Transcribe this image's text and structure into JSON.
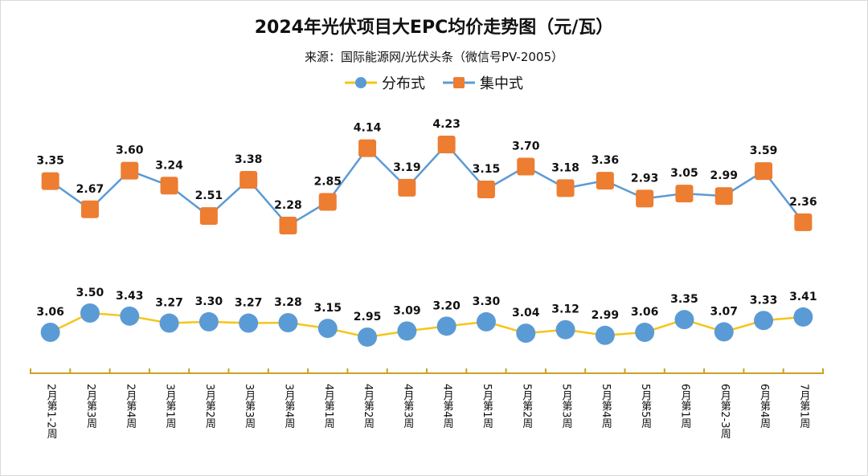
{
  "chart_data": {
    "type": "line",
    "title": "2024年光伏项目大EPC均价走势图（元/瓦）",
    "subtitle": "来源：国际能源网/光伏头条（微信号PV-2005）",
    "categories": [
      "2月第1-2周",
      "2月第3周",
      "2月第4周",
      "3月第1周",
      "3月第2周",
      "3月第3周",
      "3月第4周",
      "4月第1周",
      "4月第2周",
      "4月第3周",
      "4月第4周",
      "5月第1周",
      "5月第2周",
      "5月第3周",
      "5月第4周",
      "5月第5周",
      "6月第1周",
      "6月第2-3周",
      "6月第4周",
      "7月第1周"
    ],
    "series": [
      {
        "name": "分布式",
        "line_color": "#f5c518",
        "marker": "circle",
        "marker_color": "#5b9bd5",
        "values": [
          3.06,
          3.5,
          3.43,
          3.27,
          3.3,
          3.27,
          3.28,
          3.15,
          2.95,
          3.09,
          3.2,
          3.3,
          3.04,
          3.12,
          2.99,
          3.06,
          3.35,
          3.07,
          3.33,
          3.41
        ]
      },
      {
        "name": "集中式",
        "line_color": "#5b9bd5",
        "marker": "square",
        "marker_color": "#ed7d31",
        "values": [
          3.35,
          2.67,
          3.6,
          3.24,
          2.51,
          3.38,
          2.28,
          2.85,
          4.14,
          3.19,
          4.23,
          3.15,
          3.7,
          3.18,
          3.36,
          2.93,
          3.05,
          2.99,
          3.59,
          2.36
        ]
      }
    ],
    "legend_position": "top",
    "grid": false,
    "axis_color": "#c9a227",
    "data_labels": true
  }
}
